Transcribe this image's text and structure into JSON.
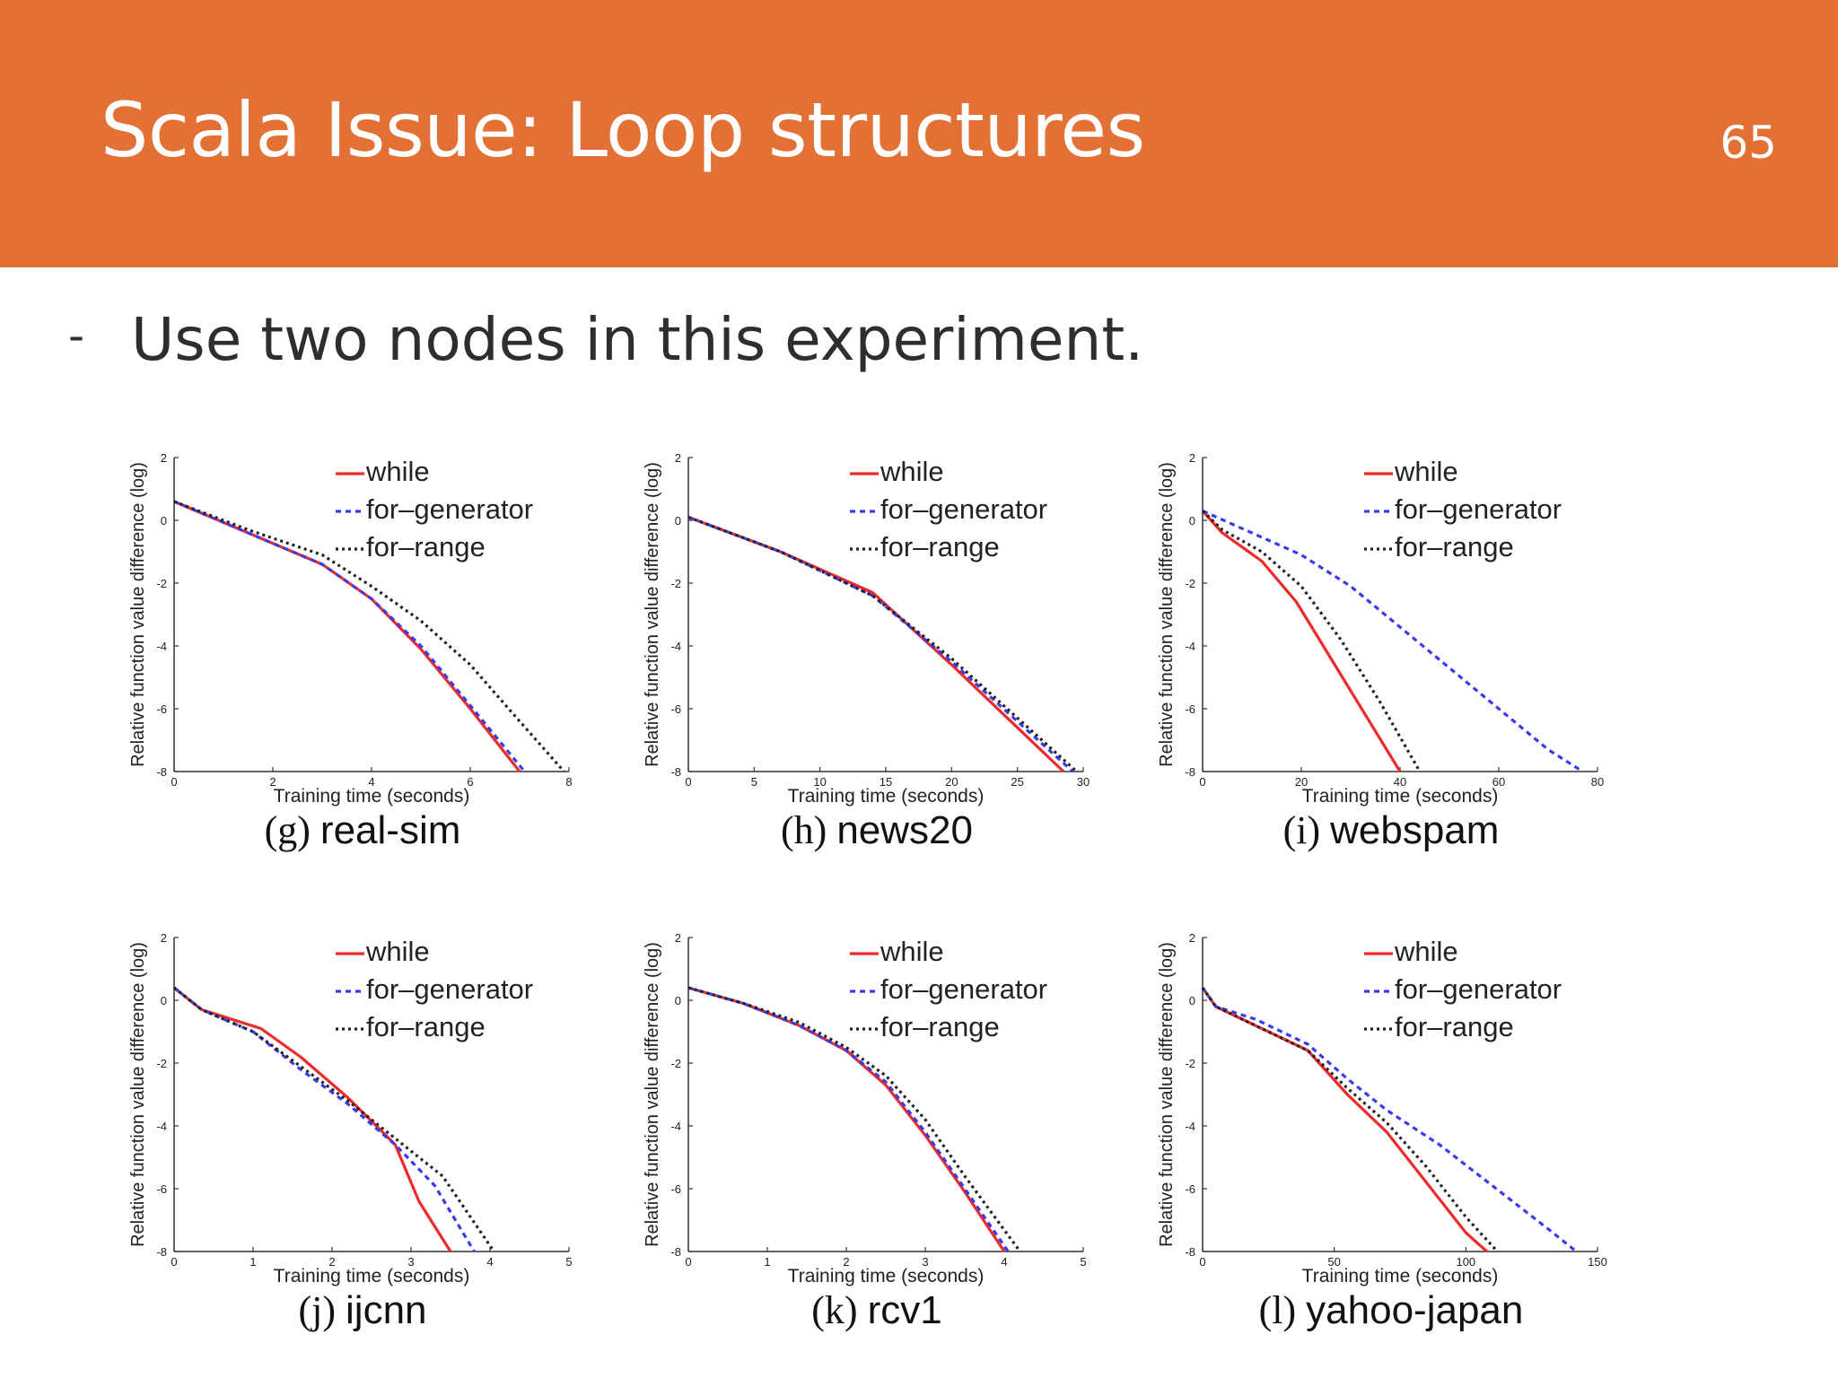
{
  "slide": {
    "title": "Scala Issue: Loop structures",
    "page_number": "65",
    "bullet_marker": "-",
    "bullet_text": "Use two nodes in this experiment."
  },
  "colors": {
    "header": "#e37034",
    "while": "#ee2a2a",
    "for_generator": "#3a3aee",
    "for_range": "#222222"
  },
  "chart_data": [
    {
      "type": "line",
      "panel_label": "(g)",
      "title": "real-sim",
      "xlabel": "Training time (seconds)",
      "ylabel": "Relative function value difference (log)",
      "xlim": [
        0,
        8
      ],
      "ylim": [
        -8,
        2
      ],
      "xticks": [
        "0",
        "2",
        "4",
        "6",
        "8"
      ],
      "yticks": [
        "-8",
        "-6",
        "-4",
        "-2",
        "0",
        "2"
      ],
      "legend": [
        "while",
        "for–generator",
        "for–range"
      ],
      "series": [
        {
          "name": "while",
          "x": [
            0,
            1.5,
            3,
            4,
            5,
            6,
            7
          ],
          "y": [
            0.6,
            -0.4,
            -1.4,
            -2.5,
            -4.1,
            -6.0,
            -8.0
          ]
        },
        {
          "name": "for–generator",
          "x": [
            0,
            1.5,
            3,
            4,
            5,
            6,
            7.1
          ],
          "y": [
            0.6,
            -0.4,
            -1.4,
            -2.5,
            -4.0,
            -5.9,
            -8.0
          ]
        },
        {
          "name": "for–range",
          "x": [
            0,
            1.5,
            3,
            4,
            5,
            6,
            7,
            7.9
          ],
          "y": [
            0.6,
            -0.3,
            -1.1,
            -2.1,
            -3.2,
            -4.6,
            -6.4,
            -8.0
          ]
        }
      ]
    },
    {
      "type": "line",
      "panel_label": "(h)",
      "title": "news20",
      "xlabel": "Training time (seconds)",
      "ylabel": "Relative function value difference (log)",
      "xlim": [
        0,
        30
      ],
      "ylim": [
        -8,
        2
      ],
      "xticks": [
        "0",
        "5",
        "10",
        "15",
        "20",
        "25",
        "30"
      ],
      "yticks": [
        "-8",
        "-6",
        "-4",
        "-2",
        "0",
        "2"
      ],
      "legend": [
        "while",
        "for–generator",
        "for–range"
      ],
      "series": [
        {
          "name": "while",
          "x": [
            0,
            7,
            14,
            20,
            28.5
          ],
          "y": [
            0.1,
            -1.0,
            -2.3,
            -4.6,
            -8.0
          ]
        },
        {
          "name": "for–generator",
          "x": [
            0,
            7,
            14,
            20,
            29.2
          ],
          "y": [
            0.1,
            -1.0,
            -2.4,
            -4.5,
            -8.0
          ]
        },
        {
          "name": "for–range",
          "x": [
            0,
            7,
            14,
            20,
            29.5
          ],
          "y": [
            0.1,
            -1.0,
            -2.4,
            -4.4,
            -8.0
          ]
        }
      ]
    },
    {
      "type": "line",
      "panel_label": "(i)",
      "title": "webspam",
      "xlabel": "Training time (seconds)",
      "ylabel": "Relative function value difference (log)",
      "xlim": [
        0,
        80
      ],
      "ylim": [
        -8,
        2
      ],
      "xticks": [
        "0",
        "20",
        "40",
        "60",
        "80"
      ],
      "yticks": [
        "-8",
        "-6",
        "-4",
        "-2",
        "0",
        "2"
      ],
      "legend": [
        "while",
        "for–generator",
        "for–range"
      ],
      "series": [
        {
          "name": "while",
          "x": [
            0,
            4,
            12,
            19,
            26,
            33,
            40
          ],
          "y": [
            0.3,
            -0.4,
            -1.3,
            -2.6,
            -4.4,
            -6.2,
            -8.0
          ]
        },
        {
          "name": "for–generator",
          "x": [
            0,
            10,
            20,
            30,
            40,
            50,
            60,
            70,
            77
          ],
          "y": [
            0.3,
            -0.4,
            -1.1,
            -2.1,
            -3.4,
            -4.7,
            -6.0,
            -7.3,
            -8.0
          ]
        },
        {
          "name": "for–range",
          "x": [
            0,
            4,
            12,
            20,
            28,
            36,
            44
          ],
          "y": [
            0.3,
            -0.3,
            -1.0,
            -2.1,
            -3.8,
            -5.8,
            -8.0
          ]
        }
      ]
    },
    {
      "type": "line",
      "panel_label": "(j)",
      "title": "ijcnn",
      "xlabel": "Training time (seconds)",
      "ylabel": "Relative function value difference (log)",
      "xlim": [
        0,
        5
      ],
      "ylim": [
        -8,
        2
      ],
      "xticks": [
        "0",
        "1",
        "2",
        "3",
        "4",
        "5"
      ],
      "yticks": [
        "-8",
        "-6",
        "-4",
        "-2",
        "0",
        "2"
      ],
      "legend": [
        "while",
        "for–generator",
        "for–range"
      ],
      "series": [
        {
          "name": "while",
          "x": [
            0,
            0.35,
            1.1,
            1.6,
            2.2,
            2.8,
            3.1,
            3.5
          ],
          "y": [
            0.4,
            -0.3,
            -0.9,
            -1.8,
            -3.1,
            -4.6,
            -6.4,
            -8.0
          ]
        },
        {
          "name": "for–generator",
          "x": [
            0,
            0.35,
            1.0,
            1.6,
            2.2,
            2.8,
            3.3,
            3.8
          ],
          "y": [
            0.4,
            -0.3,
            -1.0,
            -2.2,
            -3.3,
            -4.6,
            -5.9,
            -8.0
          ]
        },
        {
          "name": "for–range",
          "x": [
            0,
            0.35,
            1.0,
            1.6,
            2.2,
            2.8,
            3.4,
            4.05
          ],
          "y": [
            0.4,
            -0.3,
            -1.0,
            -2.1,
            -3.2,
            -4.4,
            -5.6,
            -8.0
          ]
        }
      ]
    },
    {
      "type": "line",
      "panel_label": "(k)",
      "title": "rcv1",
      "xlabel": "Training time (seconds)",
      "ylabel": "Relative function value difference (log)",
      "xlim": [
        0,
        5
      ],
      "ylim": [
        -8,
        2
      ],
      "xticks": [
        "0",
        "1",
        "2",
        "3",
        "4",
        "5"
      ],
      "yticks": [
        "-8",
        "-6",
        "-4",
        "-2",
        "0",
        "2"
      ],
      "legend": [
        "while",
        "for–generator",
        "for–range"
      ],
      "series": [
        {
          "name": "while",
          "x": [
            0,
            0.7,
            1.4,
            2.0,
            2.5,
            3.0,
            3.5,
            4.0
          ],
          "y": [
            0.4,
            -0.1,
            -0.8,
            -1.6,
            -2.7,
            -4.3,
            -6.1,
            -8.0
          ]
        },
        {
          "name": "for–generator",
          "x": [
            0,
            0.7,
            1.4,
            2.0,
            2.5,
            3.0,
            3.5,
            4.05
          ],
          "y": [
            0.4,
            -0.1,
            -0.8,
            -1.6,
            -2.6,
            -4.2,
            -6.0,
            -8.0
          ]
        },
        {
          "name": "for–range",
          "x": [
            0,
            0.7,
            1.4,
            2.0,
            2.5,
            3.0,
            3.5,
            4.2
          ],
          "y": [
            0.4,
            -0.1,
            -0.7,
            -1.5,
            -2.4,
            -3.8,
            -5.6,
            -8.0
          ]
        }
      ]
    },
    {
      "type": "line",
      "panel_label": "(l)",
      "title": "yahoo-japan",
      "xlabel": "Training time (seconds)",
      "ylabel": "Relative function value difference (log)",
      "xlim": [
        0,
        150
      ],
      "ylim": [
        -8,
        2
      ],
      "xticks": [
        "0",
        "50",
        "100",
        "150"
      ],
      "yticks": [
        "-8",
        "-6",
        "-4",
        "-2",
        "0",
        "2"
      ],
      "legend": [
        "while",
        "for–generator",
        "for–range"
      ],
      "series": [
        {
          "name": "while",
          "x": [
            0,
            5,
            15,
            40,
            55,
            70,
            85,
            100,
            108
          ],
          "y": [
            0.4,
            -0.2,
            -0.6,
            -1.6,
            -3.0,
            -4.2,
            -5.8,
            -7.4,
            -8.0
          ]
        },
        {
          "name": "for–generator",
          "x": [
            0,
            5,
            20,
            40,
            55,
            70,
            90,
            110,
            130,
            142
          ],
          "y": [
            0.4,
            -0.2,
            -0.6,
            -1.4,
            -2.5,
            -3.5,
            -4.6,
            -5.9,
            -7.2,
            -8.0
          ]
        },
        {
          "name": "for–range",
          "x": [
            0,
            5,
            15,
            40,
            55,
            70,
            85,
            100,
            112
          ],
          "y": [
            0.4,
            -0.2,
            -0.6,
            -1.6,
            -2.8,
            -3.9,
            -5.3,
            -6.9,
            -8.0
          ]
        }
      ]
    }
  ]
}
